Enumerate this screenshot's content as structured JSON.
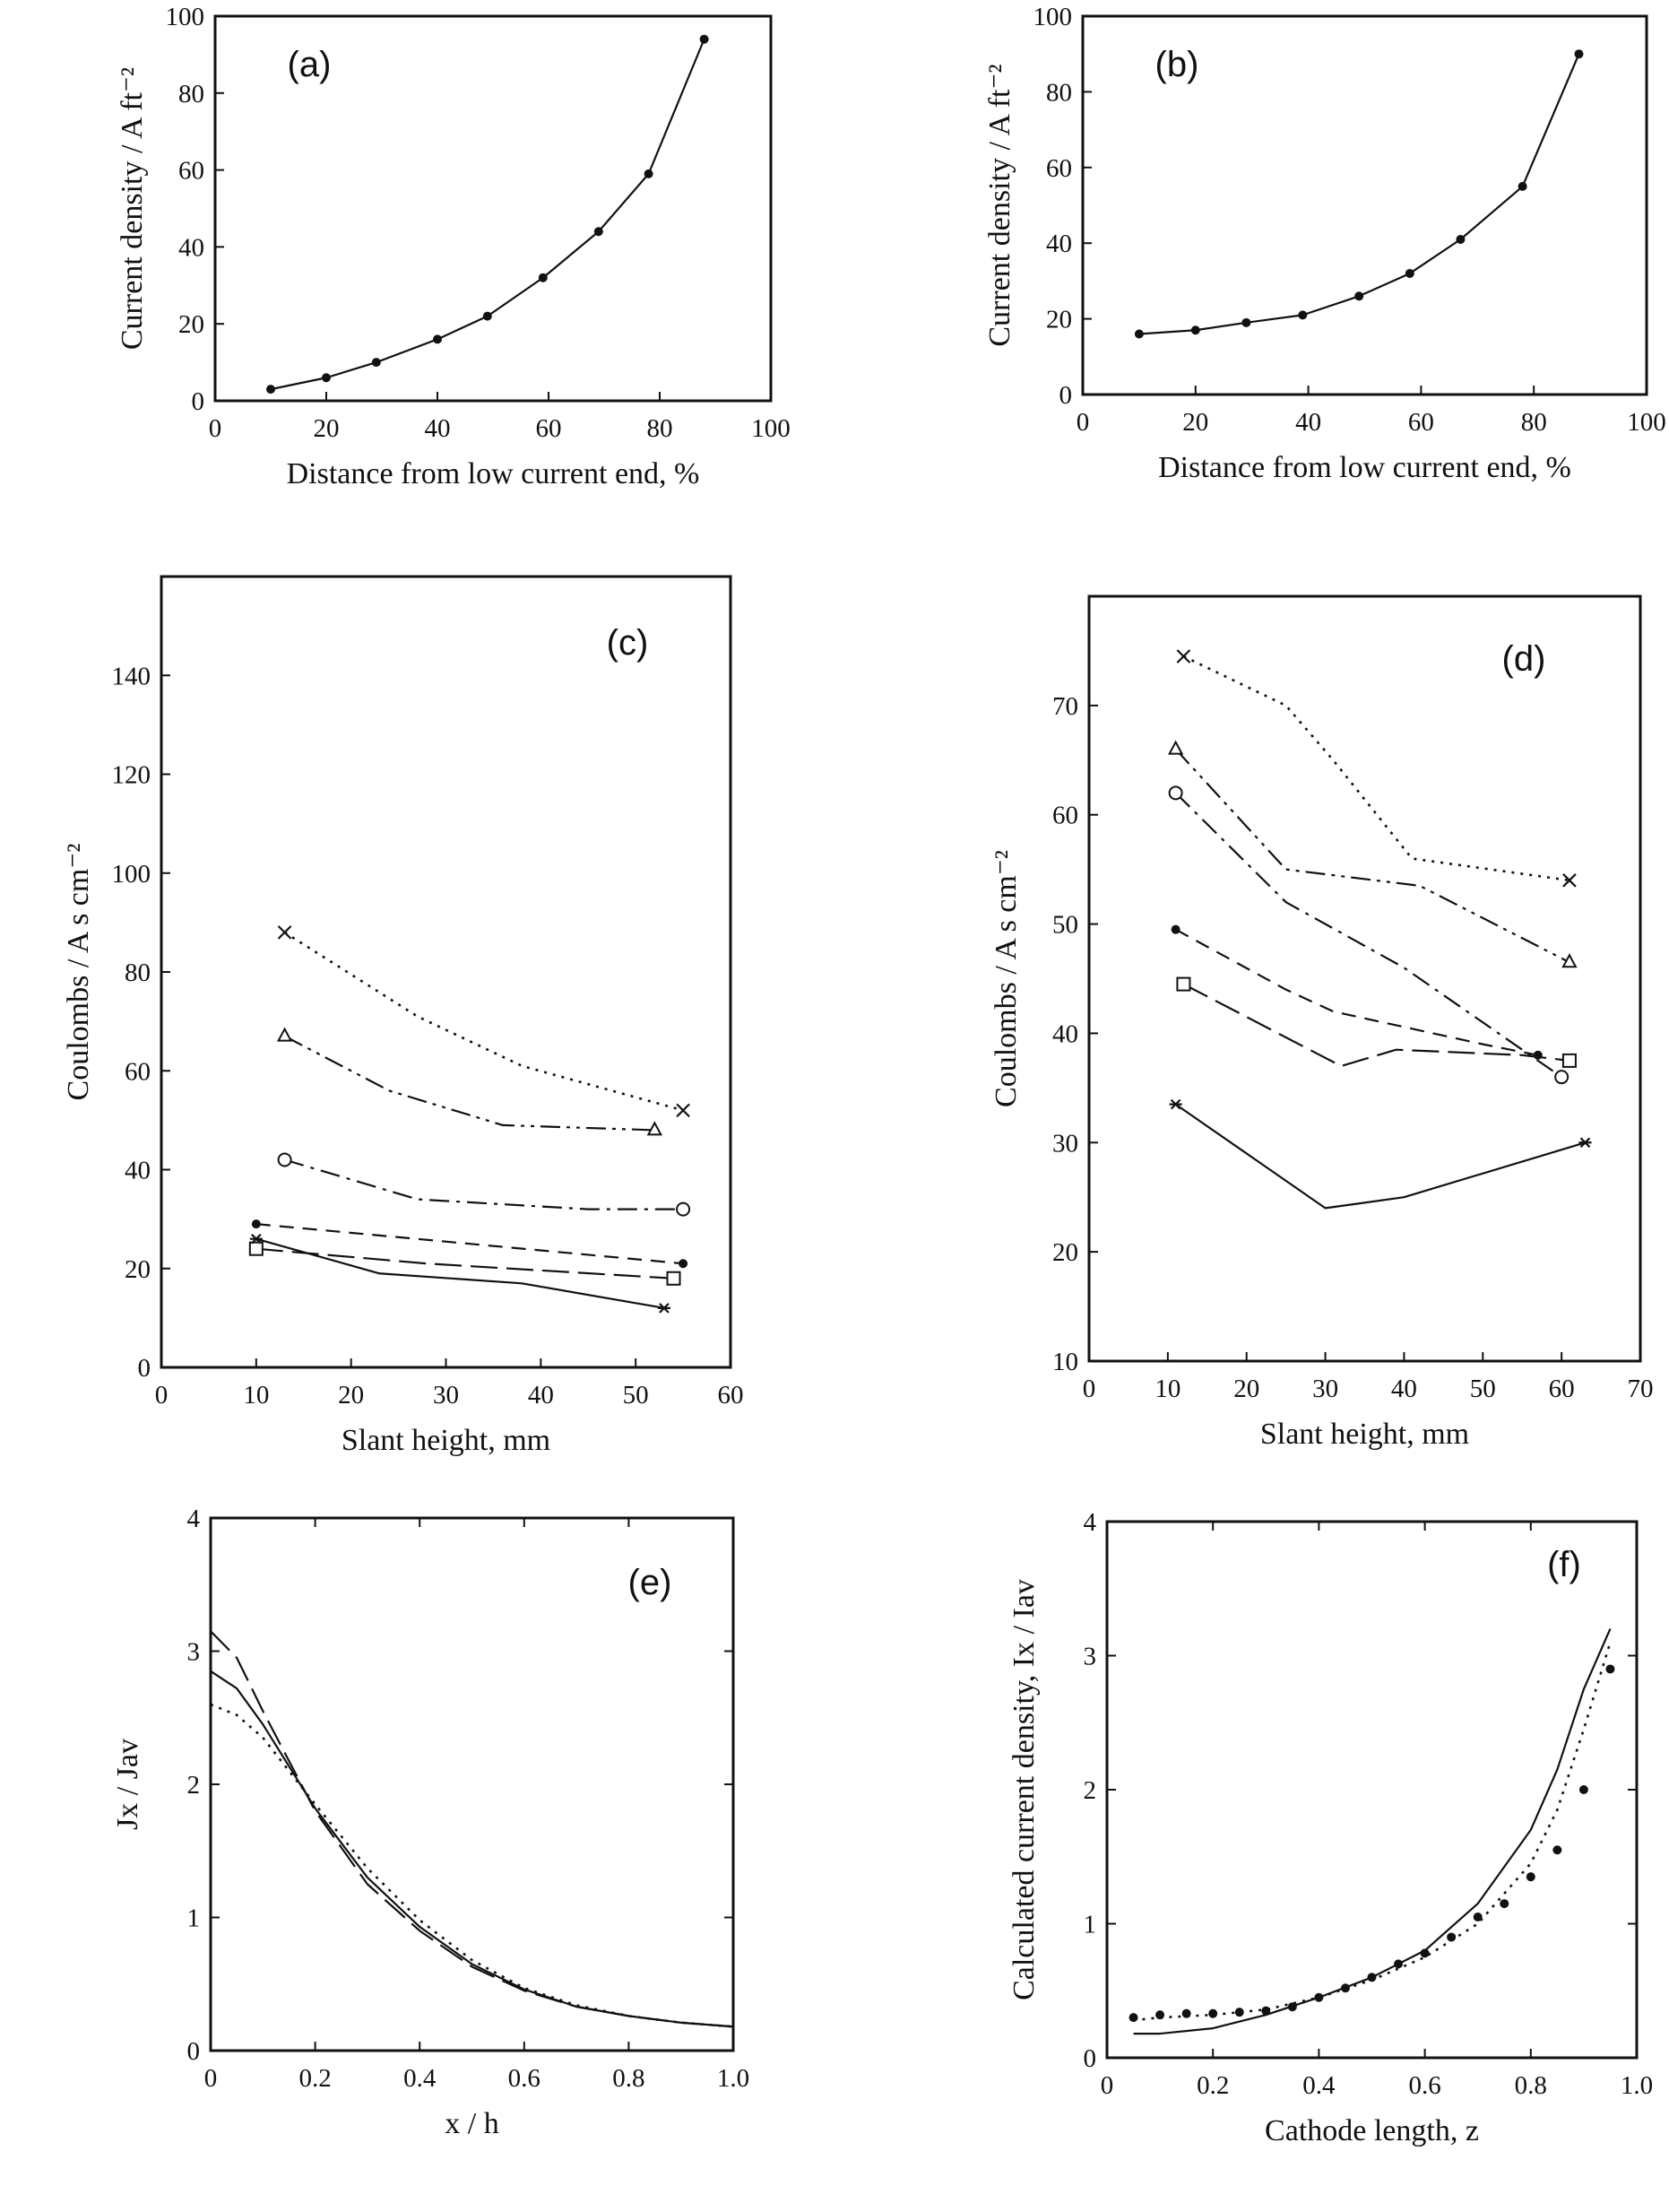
{
  "chart_data": [
    {
      "type": "line",
      "panel": "(a)",
      "xlabel": "Distance from low current end, %",
      "ylabel": "Current density / A ft⁻²",
      "xlim": [
        0,
        100
      ],
      "ylim": [
        0,
        100
      ],
      "xticks": [
        0,
        20,
        40,
        60,
        80,
        100
      ],
      "yticks": [
        0,
        20,
        40,
        60,
        80,
        100
      ],
      "series": [
        {
          "marker": "dot",
          "line": "solid",
          "x": [
            10,
            20,
            29,
            40,
            49,
            59,
            69,
            78,
            88
          ],
          "y": [
            3,
            6,
            10,
            16,
            22,
            32,
            44,
            59,
            94
          ]
        }
      ]
    },
    {
      "type": "line",
      "panel": "(b)",
      "xlabel": "Distance from low current end, %",
      "ylabel": "Current density / A ft⁻²",
      "xlim": [
        0,
        100
      ],
      "ylim": [
        0,
        100
      ],
      "xticks": [
        0,
        20,
        40,
        60,
        80,
        100
      ],
      "yticks": [
        0,
        20,
        40,
        60,
        80,
        100
      ],
      "series": [
        {
          "marker": "dot",
          "line": "solid",
          "x": [
            10,
            20,
            29,
            39,
            49,
            58,
            67,
            78,
            88
          ],
          "y": [
            16,
            17,
            19,
            21,
            26,
            32,
            41,
            55,
            90
          ]
        }
      ]
    },
    {
      "type": "line",
      "panel": "(c)",
      "xlabel": "Slant height, mm",
      "ylabel": "Coulombs / A s cm⁻²",
      "xlim": [
        0,
        60
      ],
      "ylim": [
        0,
        160
      ],
      "xticks": [
        0,
        10,
        20,
        30,
        40,
        50,
        60
      ],
      "yticks": [
        0,
        20,
        40,
        60,
        80,
        100,
        120,
        140
      ],
      "series": [
        {
          "marker": "x",
          "line": "dotted",
          "x": [
            13,
            27,
            38,
            55
          ],
          "y": [
            88,
            71,
            61,
            52
          ]
        },
        {
          "marker": "triangle",
          "line": "dashdotdot",
          "x": [
            13,
            24,
            36,
            52
          ],
          "y": [
            67,
            56,
            49,
            48
          ]
        },
        {
          "marker": "circle",
          "line": "dashdot",
          "x": [
            13,
            27,
            45,
            55
          ],
          "y": [
            42,
            34,
            32,
            32
          ]
        },
        {
          "marker": "dot",
          "line": "dashed",
          "x": [
            10,
            55
          ],
          "y": [
            29,
            21
          ]
        },
        {
          "marker": "square",
          "line": "longdash",
          "x": [
            10,
            28,
            54
          ],
          "y": [
            24,
            21,
            18
          ]
        },
        {
          "marker": "star",
          "line": "solid",
          "x": [
            10,
            23,
            38,
            53
          ],
          "y": [
            26,
            19,
            17,
            12
          ]
        }
      ]
    },
    {
      "type": "line",
      "panel": "(d)",
      "xlabel": "Slant height, mm",
      "ylabel": "Coulombs / A s cm⁻²",
      "xlim": [
        0,
        70
      ],
      "ylim": [
        10,
        80
      ],
      "xticks": [
        0,
        10,
        20,
        30,
        40,
        50,
        60,
        70
      ],
      "yticks": [
        10,
        20,
        30,
        40,
        50,
        60,
        70
      ],
      "series": [
        {
          "marker": "x",
          "line": "dotted",
          "x": [
            12,
            25,
            31,
            41,
            61
          ],
          "y": [
            74.5,
            70,
            65,
            56,
            54
          ]
        },
        {
          "marker": "triangle",
          "line": "dashdotdot",
          "x": [
            11,
            25,
            42,
            61
          ],
          "y": [
            66,
            55,
            53.5,
            46.5
          ]
        },
        {
          "marker": "circle",
          "line": "dashdot",
          "x": [
            11,
            25,
            40,
            56,
            60
          ],
          "y": [
            62,
            52,
            46,
            38,
            36
          ]
        },
        {
          "marker": "dot",
          "line": "dashed",
          "x": [
            11,
            25,
            31,
            50,
            57
          ],
          "y": [
            49.5,
            44,
            42,
            39,
            38
          ]
        },
        {
          "marker": "square",
          "line": "longdash",
          "x": [
            12,
            32,
            39,
            55,
            61
          ],
          "y": [
            44.5,
            37,
            38.5,
            38,
            37.5
          ]
        },
        {
          "marker": "star",
          "line": "solid",
          "x": [
            11,
            30,
            40,
            63
          ],
          "y": [
            33.5,
            24,
            25,
            30
          ]
        }
      ]
    },
    {
      "type": "line",
      "panel": "(e)",
      "xlabel": "x / h",
      "ylabel": "Jx / Jav",
      "xlim": [
        0,
        1.0
      ],
      "ylim": [
        0,
        4
      ],
      "xticks": [
        0,
        0.2,
        0.4,
        0.6,
        0.8,
        1.0
      ],
      "xticklabels": [
        "0",
        "0.2",
        "0.4",
        "0.6",
        "0.8",
        "1.0"
      ],
      "yticks": [
        0,
        1,
        2,
        3,
        4
      ],
      "series": [
        {
          "line": "longdash",
          "x": [
            0,
            0.05,
            0.1,
            0.2,
            0.3,
            0.4,
            0.5,
            0.6,
            0.7,
            0.8,
            0.9,
            1.0
          ],
          "y": [
            3.15,
            2.95,
            2.55,
            1.8,
            1.25,
            0.9,
            0.63,
            0.45,
            0.33,
            0.26,
            0.21,
            0.18
          ]
        },
        {
          "line": "solid",
          "x": [
            0,
            0.05,
            0.1,
            0.2,
            0.3,
            0.4,
            0.5,
            0.6,
            0.7,
            0.8,
            0.9,
            1.0
          ],
          "y": [
            2.85,
            2.72,
            2.45,
            1.82,
            1.3,
            0.93,
            0.65,
            0.46,
            0.33,
            0.26,
            0.21,
            0.18
          ]
        },
        {
          "line": "dotted",
          "x": [
            0,
            0.05,
            0.1,
            0.2,
            0.3,
            0.4,
            0.5,
            0.6,
            0.7,
            0.8,
            0.9,
            1.0
          ],
          "y": [
            2.6,
            2.52,
            2.35,
            1.85,
            1.37,
            0.98,
            0.68,
            0.47,
            0.34,
            0.26,
            0.21,
            0.18
          ]
        }
      ]
    },
    {
      "type": "line",
      "panel": "(f)",
      "xlabel": "Cathode length, z",
      "ylabel": "Calculated current density, Ix / Iav",
      "xlim": [
        0,
        1.0
      ],
      "ylim": [
        0,
        4
      ],
      "xticks": [
        0,
        0.2,
        0.4,
        0.6,
        0.8,
        1.0
      ],
      "xticklabels": [
        "0",
        "0.2",
        "0.4",
        "0.6",
        "0.8",
        "1.0"
      ],
      "yticks": [
        0,
        1,
        2,
        3,
        4
      ],
      "series": [
        {
          "line": "solid",
          "x": [
            0.05,
            0.1,
            0.2,
            0.3,
            0.4,
            0.5,
            0.6,
            0.7,
            0.8,
            0.85,
            0.9,
            0.95
          ],
          "y": [
            0.18,
            0.18,
            0.22,
            0.32,
            0.45,
            0.6,
            0.8,
            1.15,
            1.7,
            2.15,
            2.75,
            3.2
          ]
        },
        {
          "line": "dotted",
          "x": [
            0.05,
            0.1,
            0.2,
            0.3,
            0.4,
            0.5,
            0.6,
            0.7,
            0.8,
            0.85,
            0.9,
            0.95
          ],
          "y": [
            0.28,
            0.3,
            0.32,
            0.36,
            0.45,
            0.58,
            0.75,
            1.0,
            1.45,
            1.85,
            2.45,
            3.1
          ]
        },
        {
          "marker": "dot",
          "x": [
            0.05,
            0.1,
            0.15,
            0.2,
            0.25,
            0.3,
            0.35,
            0.4,
            0.45,
            0.5,
            0.55,
            0.6,
            0.65,
            0.7,
            0.75,
            0.8,
            0.85,
            0.9,
            0.95
          ],
          "y": [
            0.3,
            0.32,
            0.33,
            0.33,
            0.34,
            0.35,
            0.38,
            0.45,
            0.52,
            0.6,
            0.7,
            0.78,
            0.9,
            1.05,
            1.15,
            1.35,
            1.55,
            2.0,
            2.9
          ]
        }
      ]
    }
  ]
}
